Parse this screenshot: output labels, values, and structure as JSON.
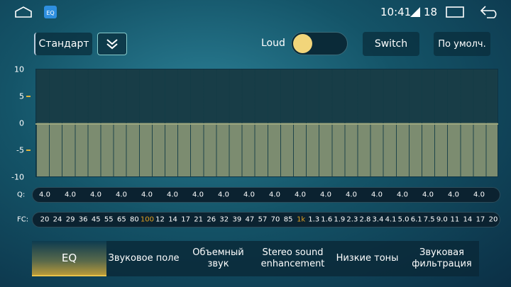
{
  "status_bar": {
    "time": "10:41",
    "signal": "18"
  },
  "toolbar": {
    "preset": "Стандарт",
    "loud_label": "Loud",
    "switch_button": "Switch",
    "default_button": "По умолч."
  },
  "equalizer": {
    "y_labels": [
      "10",
      "5",
      "0",
      "-5",
      "-10"
    ],
    "q_label": "Q:",
    "q_values": [
      "4.0",
      "4.0",
      "4.0",
      "4.0",
      "4.0",
      "4.0",
      "4.0",
      "4.0",
      "4.0",
      "4.0",
      "4.0",
      "4.0",
      "4.0",
      "4.0",
      "4.0",
      "4.0",
      "4.0",
      "4.0"
    ],
    "fc_label": "FC:",
    "fc_values": [
      "20",
      "24",
      "29",
      "36",
      "45",
      "55",
      "65",
      "80",
      "100",
      "12",
      "14",
      "17",
      "21",
      "26",
      "32",
      "39",
      "47",
      "57",
      "70",
      "85",
      "1k",
      "1.3",
      "1.6",
      "1.9",
      "2.3",
      "2.8",
      "3.4",
      "4.1",
      "5.0",
      "6.1",
      "7.5",
      "9.0",
      "11",
      "14",
      "17",
      "20"
    ]
  },
  "tabs": [
    "EQ",
    "Звуковое поле",
    "Объемный звук",
    "Stereo sound enhancement",
    "Низкие тоны",
    "Звуковая фильтрация"
  ]
}
